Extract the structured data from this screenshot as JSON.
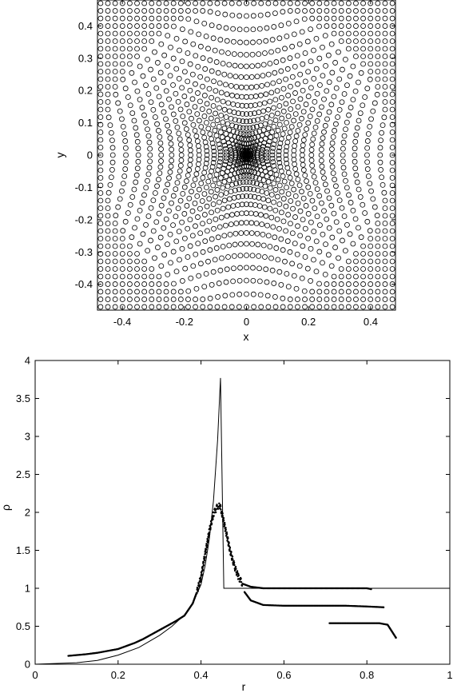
{
  "chart_data": [
    {
      "type": "scatter",
      "marker": "open-circle",
      "xlabel": "x",
      "ylabel": "y",
      "xlim": [
        -0.48,
        0.48
      ],
      "ylim": [
        -0.48,
        0.48
      ],
      "xticks": [
        -0.4,
        -0.2,
        0,
        0.2,
        0.4
      ],
      "xtick_labels": [
        "-0.4",
        "-0.2",
        "0",
        "0.2",
        "0.4"
      ],
      "yticks": [
        -0.4,
        -0.3,
        -0.2,
        -0.1,
        0,
        0.1,
        0.2,
        0.3,
        0.4
      ],
      "ytick_labels": [
        "-0.4",
        "-0.3",
        "-0.2",
        "-0.1",
        "0",
        "0.1",
        "0.2",
        "0.3",
        "0.4"
      ],
      "grid": false,
      "description_of_points": "particle positions on a square lattice of spacing ~0.0235 in the box [-0.47,0.47]^2, inner region compressed/radially displaced forming spokes, unperturbed lattice near the edges"
    },
    {
      "type": "line+scatter",
      "xlabel": "r",
      "ylabel": "ρ",
      "xlim": [
        0,
        1
      ],
      "ylim": [
        0,
        4
      ],
      "xticks": [
        0,
        0.2,
        0.4,
        0.6,
        0.8,
        1
      ],
      "xtick_labels": [
        "0",
        "0.2",
        "0.4",
        "0.6",
        "0.8",
        "1"
      ],
      "yticks": [
        0,
        0.5,
        1,
        1.5,
        2,
        2.5,
        3,
        3.5,
        4
      ],
      "ytick_labels": [
        "0",
        "0.5",
        "1",
        "1.5",
        "2",
        "2.5",
        "3",
        "3.5",
        "4"
      ],
      "grid": false,
      "series": [
        {
          "kind": "line",
          "x": [
            0,
            0.1,
            0.15,
            0.2,
            0.25,
            0.3,
            0.33,
            0.36,
            0.38,
            0.4,
            0.41,
            0.42,
            0.43,
            0.44,
            0.447,
            0.455,
            0.455,
            1.0
          ],
          "y": [
            0,
            0.02,
            0.05,
            0.12,
            0.22,
            0.38,
            0.5,
            0.65,
            0.8,
            1.05,
            1.3,
            1.65,
            2.15,
            2.95,
            3.77,
            1.0,
            1.0,
            1.0
          ]
        },
        {
          "kind": "scatter",
          "marker": "dot",
          "x": [
            0.08,
            0.1,
            0.12,
            0.15,
            0.18,
            0.2,
            0.22,
            0.24,
            0.26,
            0.28,
            0.3,
            0.32,
            0.34,
            0.36,
            0.37,
            0.38,
            0.39,
            0.4,
            0.41,
            0.42,
            0.43,
            0.44,
            0.445,
            0.45,
            0.46,
            0.47,
            0.48,
            0.49,
            0.5,
            0.52,
            0.55,
            0.6,
            0.65,
            0.7,
            0.75,
            0.8,
            0.81,
            0.505,
            0.52,
            0.55,
            0.6,
            0.65,
            0.7,
            0.75,
            0.8,
            0.84,
            0.71,
            0.74,
            0.77,
            0.8,
            0.83,
            0.85,
            0.87
          ],
          "y": [
            0.11,
            0.12,
            0.13,
            0.15,
            0.18,
            0.2,
            0.24,
            0.28,
            0.33,
            0.39,
            0.45,
            0.51,
            0.57,
            0.64,
            0.72,
            0.8,
            0.95,
            1.15,
            1.45,
            1.75,
            1.98,
            2.08,
            2.1,
            2.0,
            1.75,
            1.5,
            1.3,
            1.15,
            1.06,
            1.02,
            1.0,
            1.0,
            1.0,
            1.0,
            1.0,
            1.0,
            0.99,
            0.95,
            0.84,
            0.78,
            0.77,
            0.77,
            0.77,
            0.77,
            0.76,
            0.75,
            0.54,
            0.54,
            0.54,
            0.54,
            0.54,
            0.52,
            0.35
          ]
        }
      ]
    }
  ]
}
